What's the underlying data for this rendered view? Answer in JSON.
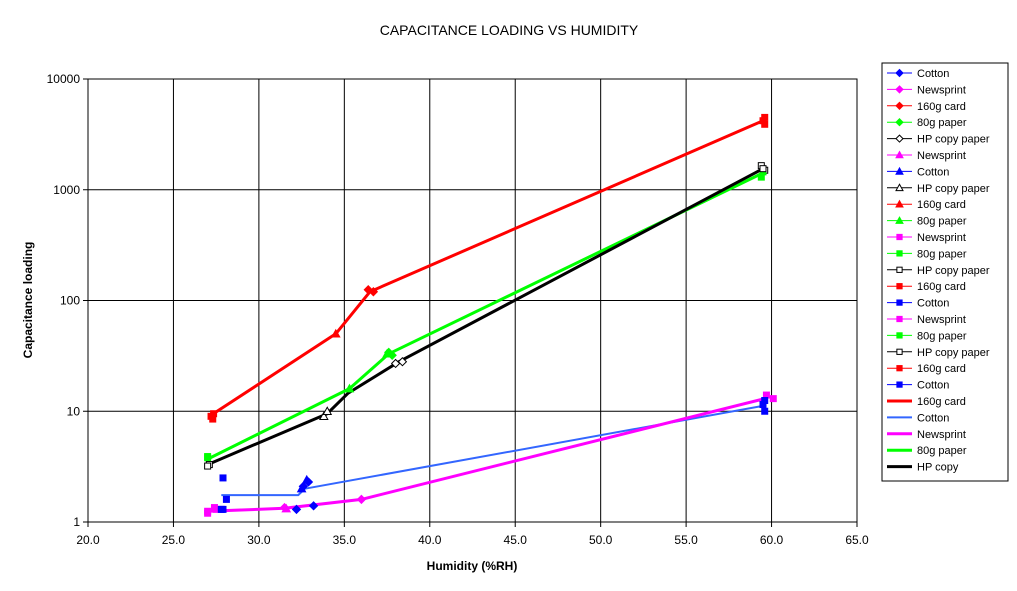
{
  "chart_data": {
    "type": "scatter",
    "title": "CAPACITANCE LOADING VS HUMIDITY",
    "xlabel": "Humidity (%RH)",
    "ylabel": "Capacitance loading",
    "xlim": [
      20,
      65
    ],
    "ylim": [
      1,
      10000
    ],
    "yscale": "log",
    "x_ticks": [
      "20.0",
      "25.0",
      "30.0",
      "35.0",
      "40.0",
      "45.0",
      "50.0",
      "55.0",
      "60.0",
      "65.0"
    ],
    "y_ticks": [
      "1",
      "10",
      "100",
      "1000",
      "10000"
    ],
    "grid": true,
    "legend_position": "right",
    "series": [
      {
        "name": "Cotton",
        "marker": "diamond",
        "color": "#0000ff",
        "line": false,
        "points": [
          [
            32.2,
            1.3
          ],
          [
            32.6,
            2.1
          ],
          [
            32.9,
            2.3
          ],
          [
            33.2,
            1.4
          ]
        ]
      },
      {
        "name": "Newsprint",
        "marker": "diamond",
        "color": "#ff00ff",
        "line": false,
        "points": [
          [
            31.5,
            1.35
          ],
          [
            36.0,
            1.6
          ]
        ]
      },
      {
        "name": "160g card",
        "marker": "diamond",
        "color": "#ff0000",
        "line": false,
        "points": [
          [
            36.4,
            125
          ],
          [
            36.7,
            120
          ]
        ]
      },
      {
        "name": "80g paper",
        "marker": "diamond",
        "color": "#00ff00",
        "line": false,
        "points": [
          [
            37.6,
            34
          ],
          [
            37.8,
            32
          ]
        ]
      },
      {
        "name": "HP copy paper",
        "marker": "diamond-open",
        "color": "#000000",
        "line": false,
        "points": [
          [
            38.0,
            27
          ],
          [
            38.4,
            28
          ]
        ]
      },
      {
        "name": "Newsprint",
        "marker": "triangle",
        "color": "#ff00ff",
        "line": false,
        "points": [
          [
            31.6,
            1.32
          ]
        ]
      },
      {
        "name": "Cotton",
        "marker": "triangle",
        "color": "#0000ff",
        "line": false,
        "points": [
          [
            32.5,
            2.0
          ],
          [
            32.8,
            2.4
          ]
        ]
      },
      {
        "name": "HP copy paper",
        "marker": "triangle-open",
        "color": "#000000",
        "line": false,
        "points": [
          [
            33.8,
            9.0
          ],
          [
            34.0,
            10.0
          ]
        ]
      },
      {
        "name": "160g card",
        "marker": "triangle",
        "color": "#ff0000",
        "line": false,
        "points": [
          [
            34.5,
            50
          ]
        ]
      },
      {
        "name": "80g paper",
        "marker": "triangle",
        "color": "#00ff00",
        "line": false,
        "points": [
          [
            35.3,
            16
          ],
          [
            37.5,
            33
          ]
        ]
      },
      {
        "name": "Newsprint",
        "marker": "square",
        "color": "#ff00ff",
        "line": false,
        "points": [
          [
            27.0,
            1.2
          ],
          [
            27.4,
            1.35
          ],
          [
            59.7,
            14
          ],
          [
            60.1,
            13
          ]
        ]
      },
      {
        "name": "80g paper",
        "marker": "square",
        "color": "#00ff00",
        "line": false,
        "points": [
          [
            27.0,
            3.8
          ],
          [
            59.4,
            1300
          ]
        ]
      },
      {
        "name": "HP copy paper",
        "marker": "square-open",
        "color": "#000000",
        "line": false,
        "points": [
          [
            27.1,
            3.3
          ],
          [
            59.4,
            1650
          ],
          [
            59.6,
            1500
          ]
        ]
      },
      {
        "name": "160g card",
        "marker": "square",
        "color": "#ff0000",
        "line": false,
        "points": [
          [
            27.3,
            8.5
          ],
          [
            27.35,
            9.5
          ],
          [
            59.6,
            4500
          ],
          [
            59.6,
            3900
          ]
        ]
      },
      {
        "name": "Cotton",
        "marker": "square",
        "color": "#0000ff",
        "line": false,
        "points": [
          [
            27.9,
            2.5
          ],
          [
            28.1,
            1.6
          ],
          [
            27.9,
            1.3
          ],
          [
            59.6,
            12.5
          ],
          [
            59.6,
            10
          ]
        ]
      },
      {
        "name": "Newsprint",
        "marker": "square",
        "color": "#ff00ff",
        "line": false,
        "points": [
          [
            27.0,
            1.25
          ],
          [
            27.5,
            1.3
          ]
        ]
      },
      {
        "name": "80g paper",
        "marker": "square",
        "color": "#00ff00",
        "line": false,
        "points": [
          [
            27.0,
            3.9
          ],
          [
            59.5,
            1450
          ]
        ]
      },
      {
        "name": "HP copy paper",
        "marker": "square-open",
        "color": "#000000",
        "line": false,
        "points": [
          [
            27.0,
            3.2
          ],
          [
            59.5,
            1550
          ]
        ]
      },
      {
        "name": "160g card",
        "marker": "square",
        "color": "#ff0000",
        "line": false,
        "points": [
          [
            27.2,
            9.0
          ],
          [
            59.5,
            4200
          ]
        ]
      },
      {
        "name": "Cotton",
        "marker": "square",
        "color": "#0000ff",
        "line": false,
        "points": [
          [
            27.8,
            1.3
          ],
          [
            59.5,
            11.5
          ]
        ]
      },
      {
        "name": "160g card",
        "marker": "none",
        "color": "#ff0000",
        "line": true,
        "width": 3,
        "points": [
          [
            27.2,
            9.2
          ],
          [
            34.5,
            50
          ],
          [
            36.5,
            120
          ],
          [
            59.5,
            4200
          ]
        ]
      },
      {
        "name": "Cotton",
        "marker": "none",
        "color": "#3366ff",
        "line": true,
        "width": 2,
        "points": [
          [
            27.8,
            1.75
          ],
          [
            32.3,
            1.75
          ],
          [
            32.7,
            2.0
          ],
          [
            59.5,
            11.2
          ]
        ]
      },
      {
        "name": "Newsprint",
        "marker": "none",
        "color": "#ff00ff",
        "line": true,
        "width": 3,
        "points": [
          [
            27.0,
            1.25
          ],
          [
            31.5,
            1.33
          ],
          [
            36.0,
            1.6
          ],
          [
            59.6,
            13
          ]
        ]
      },
      {
        "name": "80g paper",
        "marker": "none",
        "color": "#00ff00",
        "line": true,
        "width": 3,
        "points": [
          [
            27.0,
            3.7
          ],
          [
            35.3,
            16
          ],
          [
            37.6,
            33
          ],
          [
            59.5,
            1420
          ]
        ]
      },
      {
        "name": "HP copy",
        "marker": "none",
        "color": "#000000",
        "line": true,
        "width": 3,
        "points": [
          [
            27.0,
            3.3
          ],
          [
            34.0,
            9.5
          ],
          [
            35.2,
            14.5
          ],
          [
            38.2,
            28
          ],
          [
            59.5,
            1550
          ]
        ]
      }
    ]
  }
}
